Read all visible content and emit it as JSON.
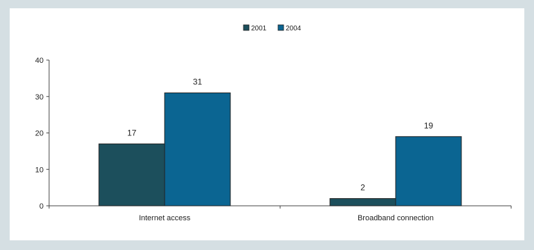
{
  "chart_data": {
    "type": "bar",
    "categories": [
      "Internet access",
      "Broadband connection"
    ],
    "series": [
      {
        "name": "2001",
        "values": [
          17,
          2
        ],
        "color": "#1c4f5c"
      },
      {
        "name": "2004",
        "values": [
          31,
          19
        ],
        "color": "#0b6592"
      }
    ],
    "ylim": [
      0,
      40
    ],
    "yticks": [
      0,
      10,
      20,
      30,
      40
    ],
    "xlabel": "",
    "ylabel": "",
    "title": "",
    "legend_position": "top-center",
    "grid": false
  }
}
